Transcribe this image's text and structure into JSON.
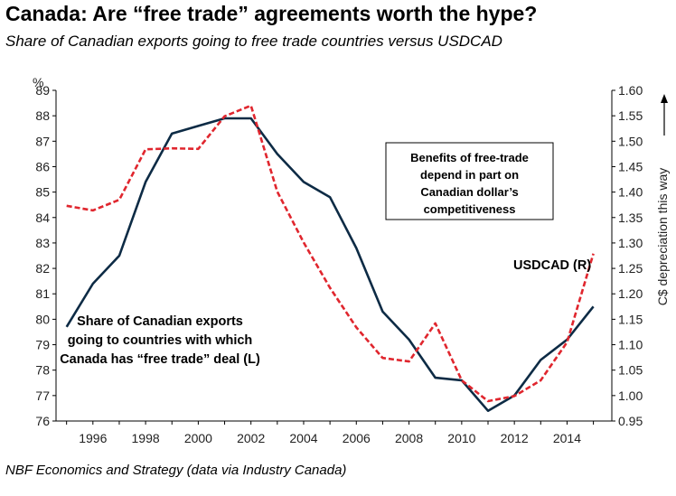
{
  "title": "Canada: Are “free trade” agreements worth the hype?",
  "subtitle": "Share of Canadian exports going to free trade countries versus USDCAD",
  "source": "NBF Economics  and Strategy (data via Industry Canada)",
  "chart_data": {
    "type": "line",
    "x": [
      1995,
      1996,
      1997,
      1998,
      1999,
      2000,
      2001,
      2002,
      2003,
      2004,
      2005,
      2006,
      2007,
      2008,
      2009,
      2010,
      2011,
      2012,
      2013,
      2014,
      2015
    ],
    "x_tick_labels": [
      "1996",
      "1998",
      "2000",
      "2002",
      "2004",
      "2006",
      "2008",
      "2010",
      "2012",
      "2014"
    ],
    "left_axis": {
      "unit_label": "%",
      "ylim": [
        76,
        89
      ],
      "ticks": [
        "76",
        "77",
        "78",
        "79",
        "80",
        "81",
        "82",
        "83",
        "84",
        "85",
        "86",
        "87",
        "88",
        "89"
      ]
    },
    "right_axis": {
      "label": "C$ depreciation this way",
      "ylim": [
        0.95,
        1.6
      ],
      "ticks": [
        "0.95",
        "1.00",
        "1.05",
        "1.10",
        "1.15",
        "1.20",
        "1.25",
        "1.30",
        "1.35",
        "1.40",
        "1.45",
        "1.50",
        "1.55",
        "1.60"
      ]
    },
    "series": [
      {
        "axis": "left",
        "color": "#0d2b45",
        "style": "solid",
        "values": [
          79.7,
          81.4,
          82.5,
          85.4,
          87.3,
          87.6,
          87.9,
          87.9,
          86.5,
          85.4,
          84.8,
          82.8,
          80.3,
          79.2,
          77.7,
          77.6,
          76.4,
          77.0,
          78.4,
          79.2,
          80.5
        ]
      },
      {
        "axis": "right",
        "color": "#e0262e",
        "style": "dashed",
        "values": [
          1.373,
          1.364,
          1.385,
          1.484,
          1.486,
          1.485,
          1.549,
          1.57,
          1.401,
          1.301,
          1.212,
          1.134,
          1.074,
          1.067,
          1.142,
          1.03,
          0.989,
          0.999,
          1.03,
          1.105,
          1.279
        ]
      }
    ],
    "annotations": [
      {
        "id": "share",
        "lines": [
          "Share of Canadian exports",
          "going to countries with which",
          "Canada has “free trade” deal (L)"
        ]
      },
      {
        "id": "usdcad",
        "lines": [
          "USDCAD (R)"
        ]
      },
      {
        "id": "box",
        "lines": [
          "Benefits of free-trade",
          "depend in part on",
          "Canadian dollar’s",
          "competitiveness"
        ]
      }
    ],
    "grid": false,
    "legend": "none"
  }
}
